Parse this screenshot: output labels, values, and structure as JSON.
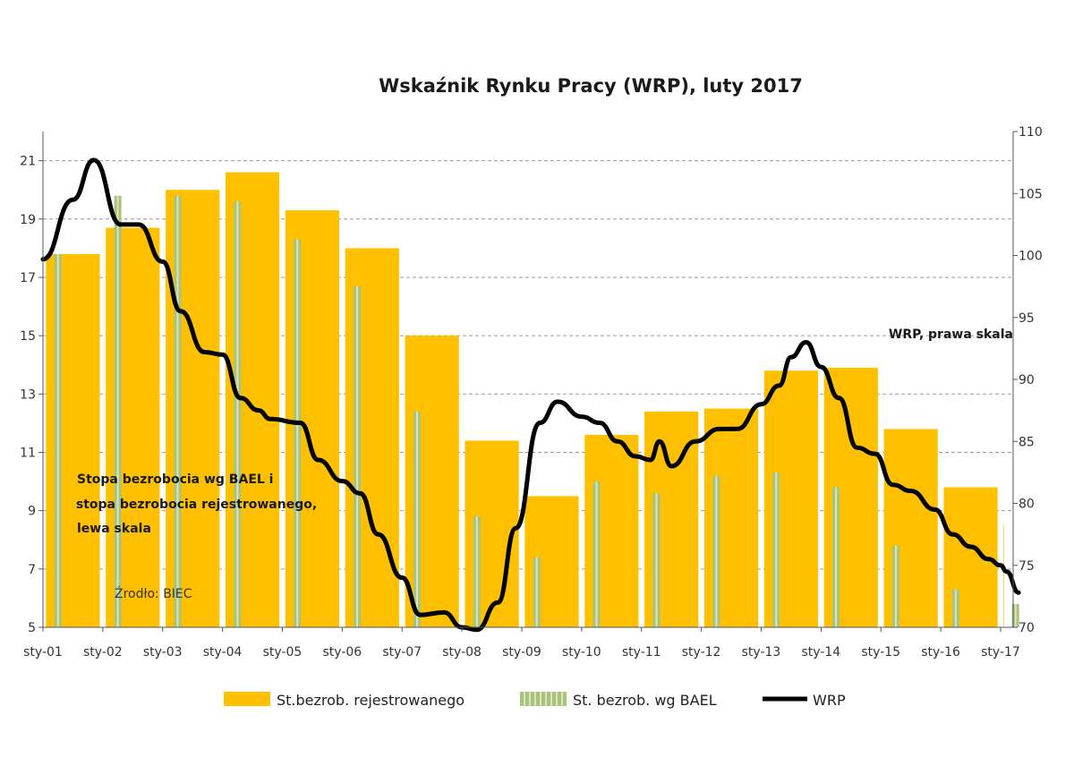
{
  "chart_data": {
    "type": "bar",
    "title": "Wskaźnik Rynku Pracy (WRP), luty 2017",
    "categories": [
      "sty-01",
      "sty-02",
      "sty-03",
      "sty-04",
      "sty-05",
      "sty-06",
      "sty-07",
      "sty-08",
      "sty-09",
      "sty-10",
      "sty-11",
      "sty-12",
      "sty-13",
      "sty-14",
      "sty-15",
      "sty-16",
      "sty-17"
    ],
    "left_axis": {
      "ylim": [
        5,
        22
      ],
      "ticks": [
        5,
        7,
        9,
        11,
        13,
        15,
        17,
        19,
        21
      ]
    },
    "right_axis": {
      "ylim": [
        70,
        110
      ],
      "ticks": [
        70,
        75,
        80,
        85,
        90,
        95,
        100,
        105,
        110
      ]
    },
    "grid": true,
    "legend_position": "bottom",
    "series": [
      {
        "name": "St.bezrob. rejestrowanego",
        "kind": "bar",
        "axis": "left",
        "color": "#FFC000",
        "values": [
          17.8,
          18.7,
          20.0,
          20.6,
          19.3,
          18.0,
          15.0,
          11.4,
          9.5,
          11.6,
          12.4,
          12.5,
          13.8,
          13.9,
          11.8,
          9.8,
          8.5
        ]
      },
      {
        "name": "St. bezrob. wg BAEL",
        "kind": "bar",
        "axis": "left",
        "color": "#A9C37A",
        "values": [
          17.8,
          19.8,
          19.8,
          19.6,
          18.3,
          16.7,
          12.4,
          8.8,
          7.4,
          10.0,
          9.6,
          10.2,
          10.3,
          9.8,
          7.8,
          6.3,
          5.8
        ]
      },
      {
        "name": "WRP",
        "kind": "line",
        "axis": "right",
        "color": "#000000",
        "points": [
          [
            0,
            99.7
          ],
          [
            0.5,
            104.5
          ],
          [
            0.85,
            107.7
          ],
          [
            1.3,
            102.5
          ],
          [
            1.6,
            102.5
          ],
          [
            2.0,
            99.5
          ],
          [
            2.3,
            95.5
          ],
          [
            2.7,
            92.2
          ],
          [
            3.0,
            92.0
          ],
          [
            3.3,
            88.5
          ],
          [
            3.6,
            87.5
          ],
          [
            3.8,
            86.8
          ],
          [
            4.3,
            86.5
          ],
          [
            4.6,
            83.5
          ],
          [
            5.0,
            81.8
          ],
          [
            5.3,
            80.8
          ],
          [
            5.6,
            77.5
          ],
          [
            6.0,
            74.0
          ],
          [
            6.3,
            71.0
          ],
          [
            6.7,
            71.2
          ],
          [
            7.0,
            70.0
          ],
          [
            7.25,
            69.8
          ],
          [
            7.6,
            72.0
          ],
          [
            7.9,
            78.0
          ],
          [
            8.3,
            86.5
          ],
          [
            8.6,
            88.2
          ],
          [
            9.0,
            87.0
          ],
          [
            9.3,
            86.5
          ],
          [
            9.6,
            85.0
          ],
          [
            9.9,
            83.8
          ],
          [
            10.15,
            83.5
          ],
          [
            10.3,
            85.0
          ],
          [
            10.5,
            83.0
          ],
          [
            10.9,
            85.0
          ],
          [
            11.3,
            86.0
          ],
          [
            11.6,
            86.0
          ],
          [
            12.0,
            88.0
          ],
          [
            12.3,
            89.5
          ],
          [
            12.5,
            91.8
          ],
          [
            12.75,
            93.0
          ],
          [
            13.0,
            91.0
          ],
          [
            13.3,
            88.5
          ],
          [
            13.6,
            84.5
          ],
          [
            13.9,
            84.0
          ],
          [
            14.2,
            81.5
          ],
          [
            14.5,
            81.0
          ],
          [
            14.9,
            79.5
          ],
          [
            15.2,
            77.5
          ],
          [
            15.5,
            76.5
          ],
          [
            15.8,
            75.5
          ],
          [
            16.0,
            75.0
          ],
          [
            16.1,
            74.5
          ],
          [
            16.3,
            72.8
          ]
        ]
      }
    ],
    "annotations": [
      "WRP, prawa skala",
      "Stopa bezrobocia wg BAEL i",
      " stopa bezrobocia rejestrowanego,",
      "lewa skala",
      "Źrodło: BIEC"
    ]
  }
}
